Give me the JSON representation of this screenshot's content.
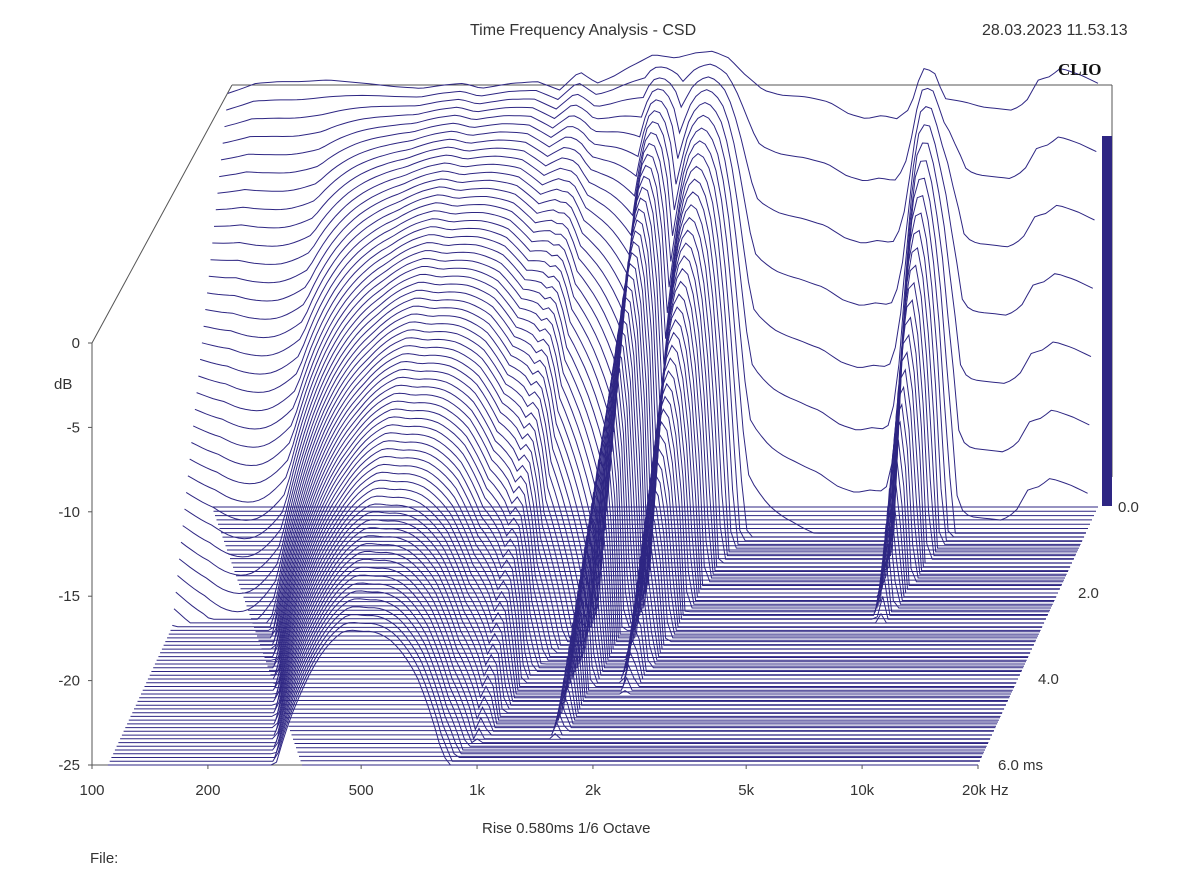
{
  "chart_data": {
    "type": "waterfall",
    "title": "Time Frequency Analysis - CSD",
    "timestamp": "28.03.2023 11.53.13",
    "brand": "CLIO",
    "ylabel": "dB",
    "y_ticks": [
      "0",
      "-5",
      "-10",
      "-15",
      "-20",
      "-25"
    ],
    "y_tick_values": [
      0,
      -5,
      -10,
      -15,
      -20,
      -25
    ],
    "ylim": [
      -25,
      0
    ],
    "x_ticks": [
      "100",
      "200",
      "500",
      "1k",
      "2k",
      "5k",
      "10k",
      "20k Hz"
    ],
    "x_tick_values": [
      100,
      200,
      500,
      1000,
      2000,
      5000,
      10000,
      20000
    ],
    "x_scale": "log",
    "xlim": [
      100,
      20000
    ],
    "time_ticks": [
      "0.0",
      "2.0",
      "4.0",
      "6.0  ms"
    ],
    "time_tick_values": [
      0,
      2,
      4,
      6
    ],
    "time_range_ms": [
      0,
      6
    ],
    "rise_info": "Rise 0.580ms   1/6 Octave",
    "file_label": "File:",
    "line_color": "#2e2683",
    "front_response": {
      "freq_hz": [
        110,
        120,
        130,
        150,
        170,
        200,
        250,
        300,
        350,
        400,
        450,
        500,
        600,
        700,
        800,
        900,
        1000,
        1100,
        1200,
        1400,
        1600,
        1800,
        2000,
        2200,
        2400,
        2700,
        3000,
        3500,
        4000,
        4500,
        5000,
        5500,
        6000,
        6500,
        7000,
        7500,
        8000,
        9000,
        10000,
        11000,
        12000,
        13000,
        14000,
        15000,
        16000,
        18000,
        20000
      ],
      "db": [
        -0.5,
        -0.2,
        0.1,
        0.2,
        0.2,
        0.3,
        0.1,
        -0.1,
        -0.2,
        0.0,
        0.1,
        -0.2,
        0.1,
        0.2,
        -0.3,
        0.8,
        0.1,
        0.5,
        1.0,
        1.8,
        1.6,
        1.9,
        2.0,
        1.6,
        0.7,
        -0.3,
        -0.6,
        -0.7,
        -1.0,
        -1.7,
        -2.0,
        -1.8,
        -2.0,
        -1.4,
        1.0,
        0.8,
        -0.8,
        -1.0,
        -1.3,
        -1.4,
        -1.5,
        -1.0,
        0.3,
        0.5,
        1.0,
        0.6,
        0.1
      ]
    },
    "decay_ridges": [
      {
        "center_hz": 500,
        "bandwidth_oct": 0.8,
        "time_ms": 6.0
      },
      {
        "center_hz": 950,
        "bandwidth_oct": 0.15,
        "time_ms": 3.5
      },
      {
        "center_hz": 1500,
        "bandwidth_oct": 0.1,
        "time_ms": 3.3
      },
      {
        "center_hz": 2000,
        "bandwidth_oct": 0.15,
        "time_ms": 2.5
      },
      {
        "center_hz": 7500,
        "bandwidth_oct": 0.1,
        "time_ms": 1.5
      }
    ]
  }
}
